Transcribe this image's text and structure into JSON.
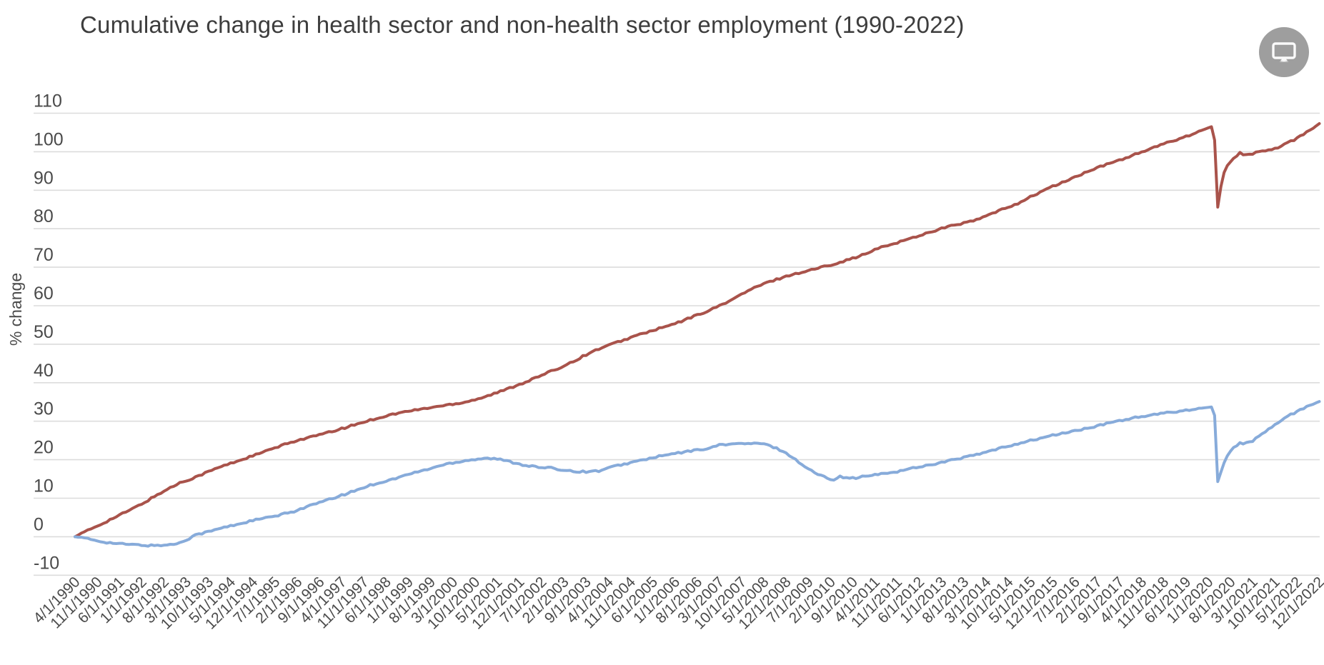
{
  "header": {
    "fullscreen_button": {
      "icon": "monitor-icon",
      "bg_color": "#9e9e9e",
      "glyph_color": "#fafafa"
    }
  },
  "chart_data": {
    "type": "line",
    "title": "Cumulative change in health sector and non-health sector employment (1990-2022)",
    "xlabel": "",
    "ylabel": "% change",
    "ylim": [
      -10,
      110
    ],
    "y_ticks": [
      110,
      100,
      90,
      80,
      70,
      60,
      50,
      40,
      30,
      20,
      10,
      0,
      -10
    ],
    "grid": "horizontal",
    "legend": "none",
    "grid_color": "#dcdcdc",
    "axis_text_color": "#4a4a4a",
    "x_unit": "months since 4/1/1990 (monthly series, 393 points)",
    "x_tick_labels": [
      "4/1/1990",
      "11/1/1990",
      "6/1/1991",
      "1/1/1992",
      "8/1/1992",
      "3/1/1993",
      "10/1/1993",
      "5/1/1994",
      "12/1/1994",
      "7/1/1995",
      "2/1/1996",
      "9/1/1996",
      "4/1/1997",
      "11/1/1997",
      "6/1/1998",
      "1/1/1999",
      "8/1/1999",
      "3/1/2000",
      "10/1/2000",
      "5/1/2001",
      "12/1/2001",
      "7/1/2002",
      "2/1/2003",
      "9/1/2003",
      "4/1/2004",
      "11/1/2004",
      "6/1/2005",
      "1/1/2006",
      "8/1/2006",
      "3/1/2007",
      "10/1/2007",
      "5/1/2008",
      "12/1/2008",
      "7/1/2009",
      "2/1/2010",
      "9/1/2010",
      "4/1/2011",
      "11/1/2011",
      "6/1/2012",
      "1/1/2013",
      "8/1/2013",
      "3/1/2014",
      "10/1/2014",
      "5/1/2015",
      "12/1/2015",
      "7/1/2016",
      "2/1/2017",
      "9/1/2017",
      "4/1/2018",
      "11/1/2018",
      "6/1/2019",
      "1/1/2020",
      "8/1/2020",
      "3/1/2021",
      "10/1/2021",
      "5/1/2022",
      "12/1/2022"
    ],
    "x_tick_interval_months": 7,
    "series": [
      {
        "name": "health sector",
        "color": "#a9534b",
        "line_width": 4,
        "anchor_points": [
          [
            0,
            0
          ],
          [
            4,
            1.6
          ],
          [
            8,
            3.2
          ],
          [
            13,
            5.2
          ],
          [
            17,
            6.8
          ],
          [
            21,
            8.5
          ],
          [
            27,
            11.4
          ],
          [
            33,
            14.0
          ],
          [
            37,
            15.2
          ],
          [
            45,
            17.9
          ],
          [
            57,
            21.3
          ],
          [
            69,
            24.8
          ],
          [
            81,
            27.3
          ],
          [
            93,
            30.3
          ],
          [
            100,
            31.8
          ],
          [
            105,
            32.6
          ],
          [
            111,
            33.4
          ],
          [
            117,
            34.2
          ],
          [
            123,
            35.0
          ],
          [
            129,
            36.3
          ],
          [
            135,
            38.0
          ],
          [
            141,
            39.9
          ],
          [
            147,
            41.9
          ],
          [
            153,
            44.0
          ],
          [
            159,
            46.4
          ],
          [
            161,
            47.3
          ],
          [
            165,
            48.8
          ],
          [
            177,
            52.3
          ],
          [
            189,
            55.3
          ],
          [
            201,
            59.2
          ],
          [
            207,
            61.6
          ],
          [
            213,
            64.3
          ],
          [
            219,
            66.3
          ],
          [
            225,
            67.9
          ],
          [
            231,
            69.1
          ],
          [
            237,
            70.4
          ],
          [
            243,
            71.8
          ],
          [
            249,
            73.4
          ],
          [
            253,
            74.9
          ],
          [
            261,
            76.9
          ],
          [
            273,
            80.1
          ],
          [
            279,
            81.3
          ],
          [
            283,
            82.0
          ],
          [
            287,
            83.3
          ],
          [
            297,
            86.6
          ],
          [
            306,
            90.3
          ],
          [
            309,
            91.3
          ],
          [
            321,
            95.5
          ],
          [
            333,
            99.0
          ],
          [
            345,
            102.6
          ],
          [
            351,
            104.3
          ],
          [
            357,
            106.2
          ],
          [
            358,
            106.5
          ],
          [
            359,
            103.0
          ],
          [
            360,
            85.6
          ],
          [
            361,
            91.0
          ],
          [
            362,
            94.6
          ],
          [
            363,
            96.4
          ],
          [
            365,
            98.3
          ],
          [
            367,
            99.7
          ],
          [
            369,
            99.1
          ],
          [
            371,
            99.5
          ],
          [
            375,
            100.3
          ],
          [
            379,
            101.0
          ],
          [
            381,
            101.8
          ],
          [
            384,
            103.1
          ],
          [
            387,
            104.6
          ],
          [
            390,
            106.2
          ],
          [
            392,
            107.4
          ]
        ]
      },
      {
        "name": "non-health sector",
        "color": "#87abda",
        "line_width": 4,
        "anchor_points": [
          [
            0,
            0
          ],
          [
            3,
            -0.4
          ],
          [
            6,
            -0.9
          ],
          [
            11,
            -1.6
          ],
          [
            15,
            -1.9
          ],
          [
            21,
            -2.2
          ],
          [
            24,
            -2.3
          ],
          [
            30,
            -2.1
          ],
          [
            33,
            -1.6
          ],
          [
            36,
            -0.4
          ],
          [
            37,
            0.3
          ],
          [
            43,
            1.5
          ],
          [
            45,
            2.0
          ],
          [
            51,
            3.2
          ],
          [
            57,
            4.4
          ],
          [
            63,
            5.3
          ],
          [
            69,
            6.6
          ],
          [
            73,
            7.8
          ],
          [
            81,
            9.9
          ],
          [
            87,
            11.6
          ],
          [
            93,
            13.4
          ],
          [
            100,
            14.9
          ],
          [
            105,
            16.2
          ],
          [
            111,
            17.5
          ],
          [
            117,
            18.9
          ],
          [
            123,
            19.8
          ],
          [
            129,
            20.4
          ],
          [
            133,
            20.2
          ],
          [
            137,
            19.5
          ],
          [
            141,
            18.7
          ],
          [
            147,
            17.9
          ],
          [
            151,
            17.8
          ],
          [
            153,
            17.4
          ],
          [
            159,
            16.9
          ],
          [
            161,
            16.9
          ],
          [
            165,
            17.1
          ],
          [
            170,
            18.3
          ],
          [
            177,
            19.6
          ],
          [
            183,
            20.7
          ],
          [
            189,
            21.6
          ],
          [
            195,
            22.4
          ],
          [
            201,
            23.2
          ],
          [
            203,
            23.9
          ],
          [
            207,
            24.1
          ],
          [
            213,
            24.2
          ],
          [
            216,
            24.2
          ],
          [
            219,
            23.6
          ],
          [
            222,
            22.6
          ],
          [
            225,
            21.2
          ],
          [
            228,
            19.4
          ],
          [
            231,
            17.6
          ],
          [
            234,
            16.2
          ],
          [
            237,
            15.2
          ],
          [
            239,
            14.9
          ],
          [
            241,
            15.8
          ],
          [
            243,
            15.2
          ],
          [
            246,
            15.3
          ],
          [
            249,
            15.7
          ],
          [
            255,
            16.4
          ],
          [
            261,
            17.2
          ],
          [
            264,
            17.9
          ],
          [
            267,
            18.3
          ],
          [
            273,
            19.3
          ],
          [
            279,
            20.4
          ],
          [
            285,
            21.5
          ],
          [
            289,
            22.4
          ],
          [
            297,
            24.2
          ],
          [
            309,
            26.5
          ],
          [
            321,
            28.5
          ],
          [
            327,
            29.8
          ],
          [
            333,
            30.8
          ],
          [
            345,
            32.3
          ],
          [
            351,
            33.0
          ],
          [
            357,
            33.6
          ],
          [
            358,
            33.7
          ],
          [
            359,
            31.5
          ],
          [
            360,
            14.3
          ],
          [
            361,
            16.8
          ],
          [
            362,
            19.2
          ],
          [
            363,
            21.0
          ],
          [
            364,
            22.2
          ],
          [
            365,
            23.2
          ],
          [
            367,
            24.3
          ],
          [
            369,
            24.3
          ],
          [
            371,
            24.9
          ],
          [
            373,
            26.0
          ],
          [
            376,
            28.0
          ],
          [
            379,
            29.6
          ],
          [
            381,
            30.6
          ],
          [
            383,
            31.7
          ],
          [
            386,
            33.0
          ],
          [
            389,
            34.2
          ],
          [
            392,
            35.2
          ]
        ]
      }
    ]
  }
}
